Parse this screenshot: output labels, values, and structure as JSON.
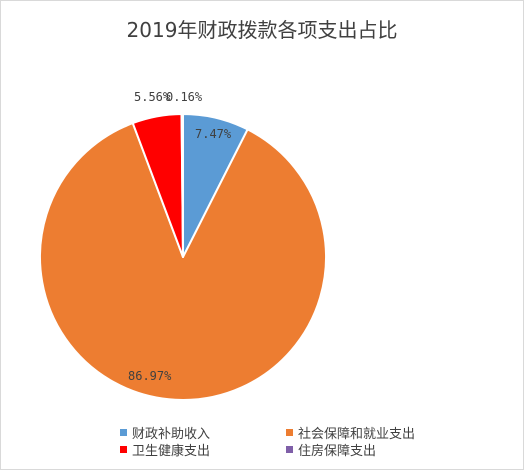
{
  "chart_data": {
    "type": "pie",
    "title": "2019年财政拨款各项支出占比",
    "categories": [
      "财政补助收入",
      "社会保障和就业支出",
      "卫生健康支出",
      "住房保障支出"
    ],
    "values": [
      7.47,
      86.97,
      5.56,
      0.16
    ],
    "value_labels": [
      "7.47%",
      "86.97%",
      "5.56%",
      "0.16%"
    ],
    "colors": [
      "#5b9bd5",
      "#ed7d31",
      "#ff0000",
      "#7f5fa8"
    ],
    "start_angle_deg": 0,
    "direction": "clockwise",
    "legend_position": "bottom"
  }
}
